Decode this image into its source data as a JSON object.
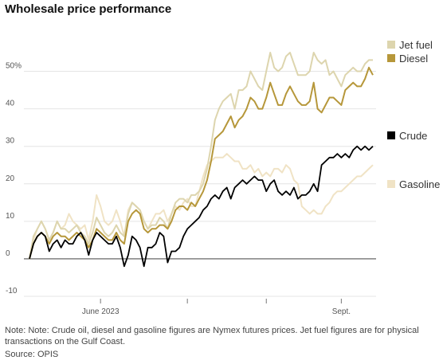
{
  "title": "Wholesale price performance",
  "note": "Note: Note: Crude oil, diesel and gasoline figures are Nymex futures prices. Jet fuel figures are for physical transactions on the Gulf Coast.",
  "source": "Source: OPIS",
  "chart_data": {
    "type": "line",
    "title": "Wholesale price performance",
    "xlabel": "",
    "ylabel": "",
    "ylim": [
      -10,
      55
    ],
    "y_ticks": [
      {
        "value": 50,
        "label": "50%"
      },
      {
        "value": 40,
        "label": "40"
      },
      {
        "value": 30,
        "label": "30"
      },
      {
        "value": 20,
        "label": "20"
      },
      {
        "value": 10,
        "label": "10"
      },
      {
        "value": 0,
        "label": "0"
      },
      {
        "value": -10,
        "label": "-10"
      }
    ],
    "x_tick_labels": [
      "June 2023",
      "Sept."
    ],
    "x_tick_positions": [
      18,
      40,
      60,
      79
    ],
    "x_tick_label_index": [
      0,
      3
    ],
    "grid": true,
    "legend_placement": "right",
    "x": [
      0,
      1,
      2,
      3,
      4,
      5,
      6,
      7,
      8,
      9,
      10,
      11,
      12,
      13,
      14,
      15,
      16,
      17,
      18,
      19,
      20,
      21,
      22,
      23,
      24,
      25,
      26,
      27,
      28,
      29,
      30,
      31,
      32,
      33,
      34,
      35,
      36,
      37,
      38,
      39,
      40,
      41,
      42,
      43,
      44,
      45,
      46,
      47,
      48,
      49,
      50,
      51,
      52,
      53,
      54,
      55,
      56,
      57,
      58,
      59,
      60,
      61,
      62,
      63,
      64,
      65,
      66,
      67,
      68,
      69,
      70,
      71,
      72,
      73,
      74,
      75,
      76,
      77,
      78,
      79,
      80,
      81,
      82,
      83,
      84,
      85,
      86,
      87
    ],
    "series": [
      {
        "name": "Jet fuel",
        "color": "#ddd5ae",
        "values": [
          0,
          6,
          8,
          10,
          8,
          5,
          7,
          10,
          8,
          8,
          7,
          8,
          9,
          7,
          6,
          4,
          7,
          11,
          9,
          7,
          6,
          7,
          9,
          7,
          6,
          12,
          15,
          14,
          13,
          10,
          8,
          9,
          9,
          11,
          10,
          8,
          12,
          15,
          16,
          16,
          15,
          17,
          17,
          18,
          20,
          24,
          30,
          37,
          40,
          42,
          43,
          44,
          40,
          45,
          45,
          46,
          50,
          48,
          46,
          45,
          50,
          55,
          51,
          50,
          51,
          54,
          55,
          52,
          49,
          49,
          49,
          50,
          55,
          53,
          52,
          53,
          49,
          50,
          48,
          46,
          49,
          50,
          51,
          50,
          50,
          52,
          53,
          53
        ]
      },
      {
        "name": "Diesel",
        "color": "#b6973a",
        "values": [
          0,
          4,
          6,
          7,
          6,
          4,
          6,
          7,
          6,
          6,
          5,
          6,
          7,
          6,
          5,
          3,
          5,
          8,
          7,
          6,
          5,
          5,
          7,
          5,
          4,
          10,
          12,
          13,
          12,
          8,
          7,
          8,
          8,
          9,
          9,
          8,
          10,
          13,
          14,
          14,
          13,
          15,
          14,
          16,
          18,
          21,
          26,
          32,
          33,
          34,
          36,
          38,
          35,
          37,
          38,
          40,
          43,
          42,
          40,
          40,
          43,
          47,
          44,
          41,
          41,
          44,
          46,
          44,
          42,
          41,
          41,
          42,
          47,
          40,
          39,
          41,
          43,
          43,
          42,
          41,
          45,
          46,
          47,
          46,
          46,
          48,
          51,
          49
        ]
      },
      {
        "name": "Crude",
        "color": "#000000",
        "values": [
          0,
          4,
          6,
          7,
          6,
          2,
          4,
          5,
          3,
          5,
          4,
          4,
          6,
          7,
          5,
          1,
          5,
          7,
          6,
          5,
          4,
          4,
          6,
          3,
          -2,
          1,
          6,
          5,
          3,
          -2,
          3,
          3,
          4,
          7,
          6,
          -1,
          2,
          2,
          3,
          6,
          8,
          9,
          10,
          11,
          13,
          14,
          16,
          17,
          16,
          18,
          19,
          16,
          19,
          20,
          21,
          20,
          21,
          22,
          21,
          21,
          18,
          20,
          21,
          18,
          17,
          18,
          17,
          19,
          16,
          17,
          17,
          18,
          20,
          18,
          25,
          26,
          27,
          27,
          28,
          27,
          28,
          27,
          29,
          30,
          29,
          30,
          29,
          30
        ]
      },
      {
        "name": "Gasoline",
        "color": "#f0e3c5",
        "values": [
          0,
          5,
          8,
          10,
          8,
          5,
          7,
          10,
          8,
          9,
          12,
          10,
          9,
          8,
          9,
          5,
          10,
          17,
          14,
          10,
          9,
          10,
          13,
          10,
          6,
          13,
          15,
          14,
          13,
          10,
          8,
          10,
          12,
          12,
          13,
          10,
          12,
          14,
          13,
          15,
          16,
          14,
          14,
          18,
          22,
          25,
          26,
          27,
          27,
          27,
          28,
          27,
          26,
          26,
          24,
          24,
          25,
          23,
          24,
          22,
          23,
          22,
          24,
          24,
          23,
          25,
          24,
          21,
          20,
          14,
          13,
          12,
          13,
          12,
          12,
          14,
          15,
          17,
          18,
          18,
          19,
          20,
          21,
          22,
          22,
          23,
          24,
          25
        ]
      }
    ]
  },
  "legend": [
    {
      "label": "Jet fuel",
      "color": "#ddd5ae"
    },
    {
      "label": "Diesel",
      "color": "#b6973a"
    },
    {
      "label": "Crude",
      "color": "#000000"
    },
    {
      "label": "Gasoline",
      "color": "#f0e3c5"
    }
  ]
}
